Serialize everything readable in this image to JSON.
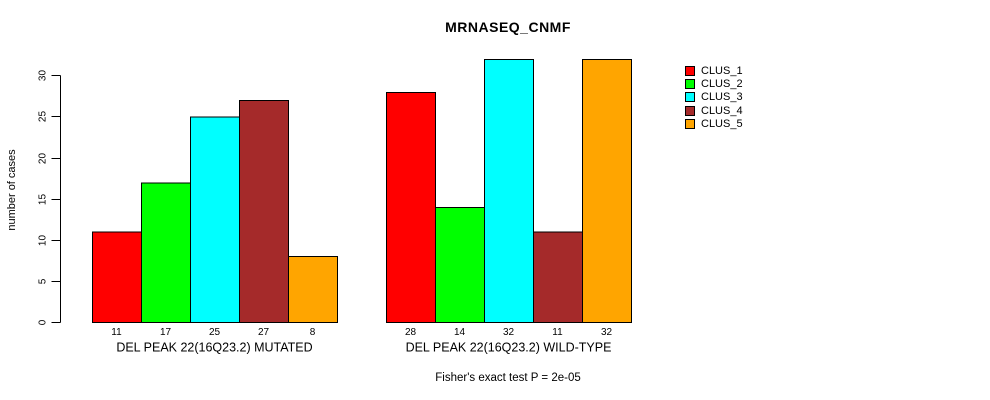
{
  "chart_data": {
    "type": "bar",
    "title": "MRNASEQ_CNMF",
    "ylabel": "number of cases",
    "xlabel": "",
    "yticks": [
      0,
      5,
      10,
      15,
      20,
      25,
      30
    ],
    "ylim": [
      0,
      32
    ],
    "grid": false,
    "legend_position": "right-top",
    "categories": [
      "DEL PEAK 22(16Q23.2) MUTATED",
      "DEL PEAK 22(16Q23.2) WILD-TYPE"
    ],
    "series": [
      {
        "name": "CLUS_1",
        "color": "#ff0000",
        "values": [
          11,
          28
        ]
      },
      {
        "name": "CLUS_2",
        "color": "#00ff00",
        "values": [
          17,
          14
        ]
      },
      {
        "name": "CLUS_3",
        "color": "#00ffff",
        "values": [
          25,
          32
        ]
      },
      {
        "name": "CLUS_4",
        "color": "#a52a2a",
        "values": [
          27,
          11
        ]
      },
      {
        "name": "CLUS_5",
        "color": "#ffa500",
        "values": [
          8,
          32
        ]
      }
    ],
    "footnote": "Fisher's exact test P = 2e-05",
    "bar_border_color": "#000000",
    "axis_color": "#000000"
  }
}
